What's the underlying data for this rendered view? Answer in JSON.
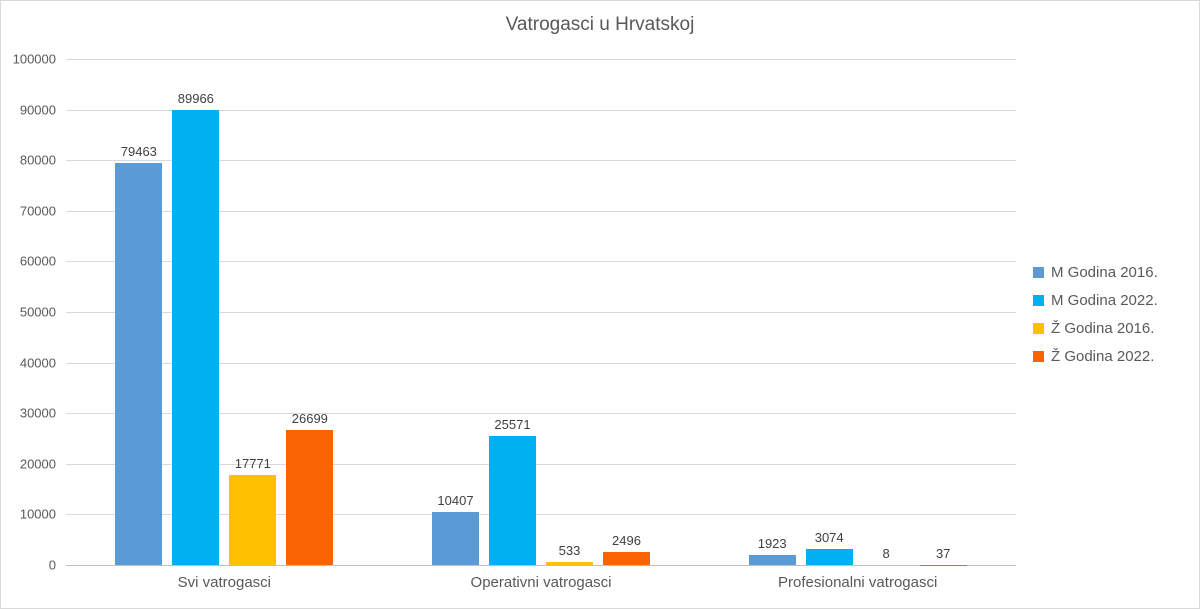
{
  "chart_data": {
    "type": "bar",
    "title": "Vatrogasci u Hrvatskoj",
    "categories": [
      "Svi vatrogasci",
      "Operativni vatrogasci",
      "Profesionalni vatrogasci"
    ],
    "series": [
      {
        "name": "M Godina 2016.",
        "color": "#5B9BD5",
        "values": [
          79463,
          10407,
          1923
        ]
      },
      {
        "name": "M Godina 2022.",
        "color": "#00B0F0",
        "values": [
          89966,
          25571,
          3074
        ]
      },
      {
        "name": "Ž Godina 2016.",
        "color": "#FFC000",
        "values": [
          17771,
          533,
          8
        ]
      },
      {
        "name": "Ž Godina 2022.",
        "color": "#F96302",
        "values": [
          26699,
          2496,
          37
        ]
      }
    ],
    "xlabel": "",
    "ylabel": "",
    "ylim": [
      0,
      100000
    ],
    "ystep": 10000,
    "grid": true,
    "legend_position": "right",
    "colors": {
      "background": "#FFFFFF",
      "border": "#D9D9D9",
      "grid": "#D9D9D9",
      "axis": "#BFBFBF",
      "tick_text": "#595959",
      "title_text": "#595959",
      "value_label_text": "#404040"
    }
  }
}
